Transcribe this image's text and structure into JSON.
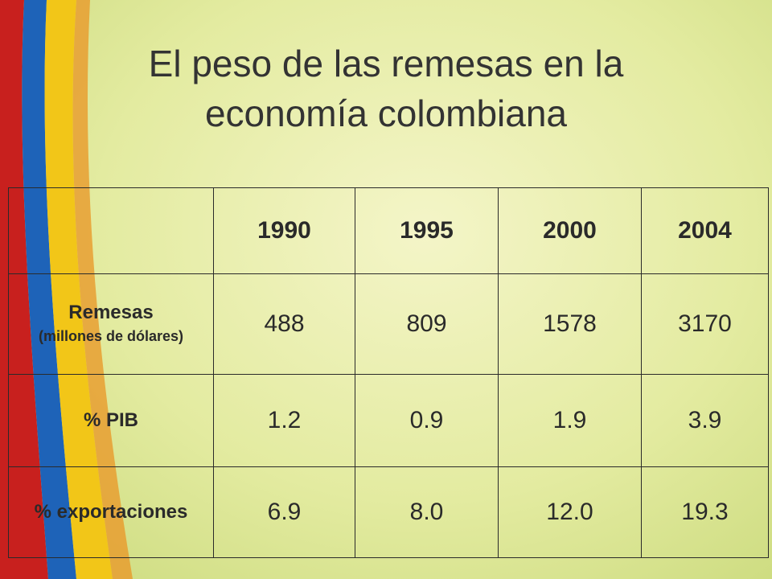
{
  "title": "El peso de las remesas en la economía colombiana",
  "table": {
    "columns": [
      "1990",
      "1995",
      "2000",
      "2004"
    ],
    "rows": [
      {
        "label": "Remesas",
        "sublabel": "(millones de dólares)",
        "values": [
          "488",
          "809",
          "1578",
          "3170"
        ]
      },
      {
        "label": "% PIB",
        "values": [
          "1.2",
          "0.9",
          "1.9",
          "3.9"
        ]
      },
      {
        "label": "% exportaciones",
        "values": [
          "6.9",
          "8.0",
          "12.0",
          "19.3"
        ]
      }
    ]
  }
}
